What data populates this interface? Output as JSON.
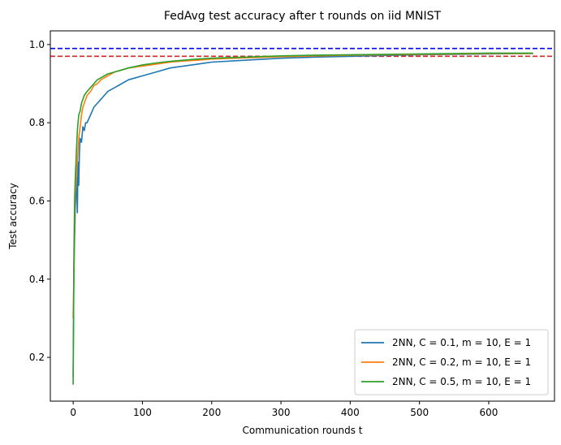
{
  "chart_data": {
    "type": "line",
    "title": "FedAvg test accuracy after t rounds on iid MNIST",
    "xlabel": "Communication rounds t",
    "ylabel": "Test accuracy",
    "xlim": [
      -33,
      695
    ],
    "ylim": [
      0.088,
      1.035
    ],
    "xticks": [
      0,
      100,
      200,
      300,
      400,
      500,
      600
    ],
    "yticks": [
      0.2,
      0.4,
      0.6,
      0.8,
      1.0
    ],
    "grid": false,
    "legend_position": "lower-right",
    "hlines": [
      {
        "y": 0.99,
        "color": "#0000ff",
        "style": "dashed"
      },
      {
        "y": 0.97,
        "color": "#d62728",
        "style": "dashed"
      }
    ],
    "series": [
      {
        "name": "2NN, C = 0.1, m = 10, E = 1",
        "color": "#1f77b4",
        "x": [
          0,
          1,
          2,
          3,
          4,
          5,
          6,
          7,
          8,
          9,
          10,
          12,
          14,
          16,
          18,
          20,
          25,
          30,
          35,
          40,
          50,
          60,
          70,
          80,
          90,
          100,
          120,
          140,
          160,
          180,
          200,
          250,
          300,
          350,
          400,
          450,
          500,
          550,
          600,
          664
        ],
        "y": [
          0.15,
          0.41,
          0.5,
          0.58,
          0.62,
          0.66,
          0.57,
          0.7,
          0.64,
          0.72,
          0.76,
          0.75,
          0.79,
          0.78,
          0.8,
          0.8,
          0.82,
          0.84,
          0.85,
          0.86,
          0.88,
          0.89,
          0.9,
          0.91,
          0.915,
          0.92,
          0.93,
          0.94,
          0.945,
          0.95,
          0.955,
          0.96,
          0.965,
          0.968,
          0.97,
          0.972,
          0.974,
          0.975,
          0.976,
          0.977
        ]
      },
      {
        "name": "2NN, C = 0.2, m = 10, E = 1",
        "color": "#ff7f0e",
        "x": [
          0,
          1,
          2,
          3,
          4,
          5,
          6,
          7,
          8,
          10,
          12,
          14,
          16,
          18,
          20,
          25,
          30,
          35,
          40,
          50,
          60,
          70,
          80,
          100,
          120,
          140,
          160,
          180,
          200,
          250,
          300,
          350,
          400,
          450,
          500,
          550,
          600,
          664
        ],
        "y": [
          0.3,
          0.41,
          0.55,
          0.62,
          0.64,
          0.68,
          0.7,
          0.73,
          0.76,
          0.79,
          0.82,
          0.84,
          0.85,
          0.86,
          0.87,
          0.88,
          0.895,
          0.9,
          0.91,
          0.92,
          0.93,
          0.935,
          0.94,
          0.945,
          0.95,
          0.955,
          0.958,
          0.96,
          0.963,
          0.966,
          0.969,
          0.971,
          0.973,
          0.974,
          0.975,
          0.976,
          0.977,
          0.977
        ]
      },
      {
        "name": "2NN, C = 0.5, m = 10, E = 1",
        "color": "#2ca02c",
        "x": [
          0,
          1,
          2,
          3,
          4,
          5,
          6,
          7,
          8,
          10,
          12,
          14,
          16,
          18,
          20,
          25,
          30,
          35,
          40,
          50,
          60,
          70,
          80,
          100,
          120,
          140,
          160,
          180,
          200,
          250,
          300,
          350,
          400,
          450,
          500,
          550,
          600,
          664
        ],
        "y": [
          0.13,
          0.45,
          0.6,
          0.66,
          0.7,
          0.74,
          0.78,
          0.8,
          0.82,
          0.83,
          0.85,
          0.86,
          0.87,
          0.875,
          0.88,
          0.89,
          0.9,
          0.91,
          0.915,
          0.925,
          0.93,
          0.935,
          0.94,
          0.948,
          0.953,
          0.957,
          0.96,
          0.963,
          0.965,
          0.968,
          0.971,
          0.973,
          0.974,
          0.975,
          0.976,
          0.977,
          0.978,
          0.978
        ]
      }
    ]
  }
}
